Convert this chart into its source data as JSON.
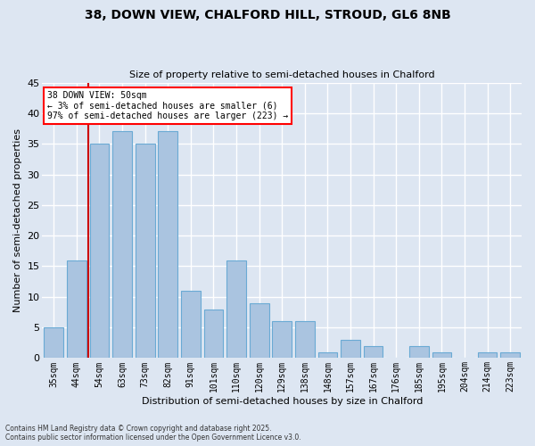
{
  "title1": "38, DOWN VIEW, CHALFORD HILL, STROUD, GL6 8NB",
  "title2": "Size of property relative to semi-detached houses in Chalford",
  "xlabel": "Distribution of semi-detached houses by size in Chalford",
  "ylabel": "Number of semi-detached properties",
  "categories": [
    "35sqm",
    "44sqm",
    "54sqm",
    "63sqm",
    "73sqm",
    "82sqm",
    "91sqm",
    "101sqm",
    "110sqm",
    "120sqm",
    "129sqm",
    "138sqm",
    "148sqm",
    "157sqm",
    "167sqm",
    "176sqm",
    "185sqm",
    "195sqm",
    "204sqm",
    "214sqm",
    "223sqm"
  ],
  "values": [
    5,
    16,
    35,
    37,
    35,
    37,
    11,
    8,
    16,
    9,
    6,
    6,
    1,
    3,
    2,
    0,
    2,
    1,
    0,
    1,
    1
  ],
  "bar_color": "#aac4e0",
  "bar_edge_color": "#6aaad4",
  "background_color": "#dde6f2",
  "grid_color": "#ffffff",
  "vline_color": "#cc0000",
  "annotation_title": "38 DOWN VIEW: 50sqm",
  "annotation_line2": "← 3% of semi-detached houses are smaller (6)",
  "annotation_line3": "97% of semi-detached houses are larger (223) →",
  "footer1": "Contains HM Land Registry data © Crown copyright and database right 2025.",
  "footer2": "Contains public sector information licensed under the Open Government Licence v3.0.",
  "ylim": [
    0,
    45
  ],
  "yticks": [
    0,
    5,
    10,
    15,
    20,
    25,
    30,
    35,
    40,
    45
  ]
}
